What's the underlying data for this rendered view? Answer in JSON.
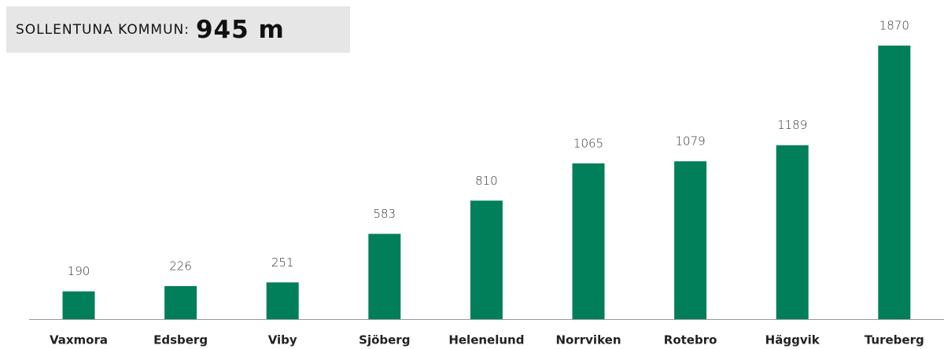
{
  "chart_data": {
    "type": "bar",
    "title_label": "SOLLENTUNA KOMMUN:",
    "title_value": "945 m",
    "categories": [
      "Vaxmora",
      "Edsberg",
      "Viby",
      "Sjöberg",
      "Helenelund",
      "Norrviken",
      "Rotebro",
      "Häggvik",
      "Tureberg"
    ],
    "values": [
      190,
      226,
      251,
      583,
      810,
      1065,
      1079,
      1189,
      1870
    ],
    "color": "#007f5a"
  }
}
